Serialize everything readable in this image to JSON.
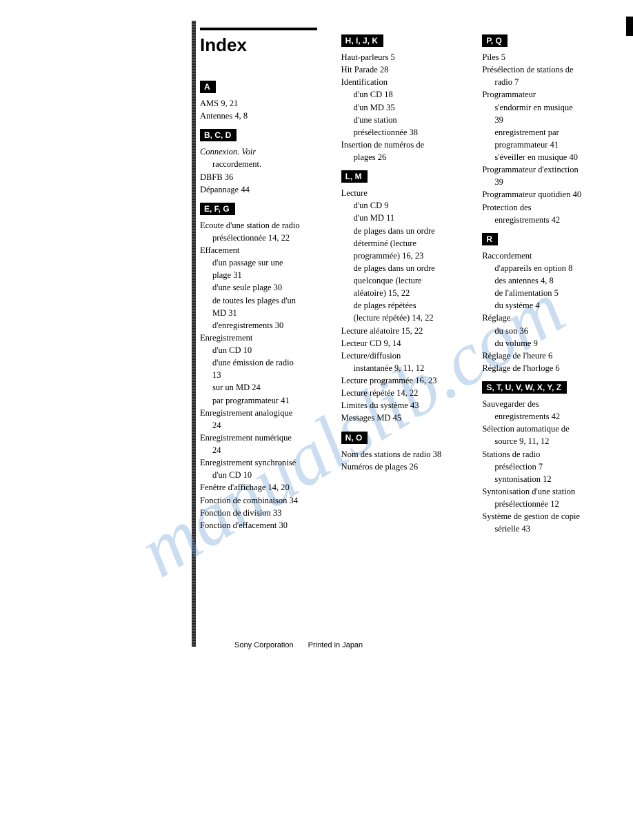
{
  "title": "Index",
  "watermark": "manualslib.com",
  "footer_corp": "Sony Corporation",
  "footer_print": "Printed in Japan",
  "col1": {
    "sections": [
      {
        "badge": "A",
        "entries": [
          {
            "text": "AMS  9, 21"
          },
          {
            "text": "Antennes  4, 8"
          }
        ]
      },
      {
        "badge": "B, C, D",
        "entries": [
          {
            "text": "Connexion. Voir"
          },
          {
            "text": "raccordement.",
            "sub": true
          },
          {
            "text": "DBFB  36"
          },
          {
            "text": "Dépannage 44"
          }
        ]
      },
      {
        "badge": "E, F, G",
        "entries": [
          {
            "text": "Ecoute d'une station de radio"
          },
          {
            "text": "présélectionnée 14, 22",
            "sub": true
          },
          {
            "text": "Effacement"
          },
          {
            "text": "d'un passage sur une",
            "sub": true
          },
          {
            "text": "plage 31",
            "sub": true
          },
          {
            "text": "d'une seule plage 30",
            "sub": true
          },
          {
            "text": "de toutes les plages d'un",
            "sub": true
          },
          {
            "text": "MD  31",
            "sub": true
          },
          {
            "text": "d'enregistrements 30",
            "sub": true
          },
          {
            "text": "Enregistrement"
          },
          {
            "text": "d'un CD  10",
            "sub": true
          },
          {
            "text": "d'une émission de radio",
            "sub": true
          },
          {
            "text": "13",
            "sub": true
          },
          {
            "text": "sur un MD  24",
            "sub": true
          },
          {
            "text": "par programmateur 41",
            "sub": true
          },
          {
            "text": "Enregistrement analogique"
          },
          {
            "text": "24",
            "sub": true
          },
          {
            "text": "Enregistrement numérique"
          },
          {
            "text": "24",
            "sub": true
          },
          {
            "text": "Enregistrement synchronisé"
          },
          {
            "text": "d'un CD 10",
            "sub": true
          },
          {
            "text": "Fenêtre d'affichage 14, 20"
          },
          {
            "text": "Fonction de combinaison 34"
          },
          {
            "text": "Fonction de division  33"
          },
          {
            "text": "Fonction d'effacement  30"
          }
        ]
      }
    ]
  },
  "col2": {
    "sections": [
      {
        "badge": "H, I, J, K",
        "entries": [
          {
            "text": "Haut-parleurs 5"
          },
          {
            "text": "Hit Parade  28"
          },
          {
            "text": "Identification"
          },
          {
            "text": "d'un CD  18",
            "sub": true
          },
          {
            "text": "d'un MD  35",
            "sub": true
          },
          {
            "text": "d'une station",
            "sub": true
          },
          {
            "text": "présélectionnée  38",
            "sub": true
          },
          {
            "text": "Insertion de numéros de"
          },
          {
            "text": "plages 26",
            "sub": true
          }
        ]
      },
      {
        "badge": "L, M",
        "entries": [
          {
            "text": "Lecture"
          },
          {
            "text": "d'un CD  9",
            "sub": true
          },
          {
            "text": "d'un MD  11",
            "sub": true
          },
          {
            "text": "de plages dans un ordre",
            "sub": true
          },
          {
            "text": "déterminé (lecture",
            "sub": true
          },
          {
            "text": "programmée) 16, 23",
            "sub": true
          },
          {
            "text": "de plages dans un ordre",
            "sub": true
          },
          {
            "text": "quelconque (lecture",
            "sub": true
          },
          {
            "text": "aléatoire)  15, 22",
            "sub": true
          },
          {
            "text": "de plages répétées",
            "sub": true
          },
          {
            "text": "(lecture répétée) 14, 22",
            "sub": true
          },
          {
            "text": "Lecture aléatoire 15, 22"
          },
          {
            "text": "Lecteur CD 9, 14"
          },
          {
            "text": "Lecture/diffusion"
          },
          {
            "text": "instantanée 9, 11, 12",
            "sub": true
          },
          {
            "text": "Lecture programmée 16, 23"
          },
          {
            "text": "Lecture répétée 14, 22"
          },
          {
            "text": "Limites du système 43"
          },
          {
            "text": "Messages MD 45"
          }
        ]
      },
      {
        "badge": "N, O",
        "entries": [
          {
            "text": "Nom des stations de radio 38"
          },
          {
            "text": "Numéros de plages 26"
          }
        ]
      }
    ]
  },
  "col3": {
    "sections": [
      {
        "badge": "P, Q",
        "entries": [
          {
            "text": "Piles 5"
          },
          {
            "text": "Présélection de stations de"
          },
          {
            "text": "radio 7",
            "sub": true
          },
          {
            "text": "Programmateur"
          },
          {
            "text": "s'endormir en musique",
            "sub": true
          },
          {
            "text": "39",
            "sub": true
          },
          {
            "text": "enregistrement par",
            "sub": true
          },
          {
            "text": "programmateur 41",
            "sub": true
          },
          {
            "text": "s'éveiller en musique 40",
            "sub": true
          },
          {
            "text": "Programmateur d'extinction"
          },
          {
            "text": "39",
            "sub": true
          },
          {
            "text": "Programmateur quotidien 40"
          },
          {
            "text": "Protection des"
          },
          {
            "text": "enregistrements 42",
            "sub": true
          }
        ]
      },
      {
        "badge": "R",
        "entries": [
          {
            "text": "Raccordement"
          },
          {
            "text": "d'appareils en option 8",
            "sub": true
          },
          {
            "text": "des antennes  4, 8",
            "sub": true
          },
          {
            "text": "de l'alimentation 5",
            "sub": true
          },
          {
            "text": "du système 4",
            "sub": true
          },
          {
            "text": "Réglage"
          },
          {
            "text": "du son  36",
            "sub": true
          },
          {
            "text": "du volume  9",
            "sub": true
          },
          {
            "text": "Réglage de l'heure 6"
          },
          {
            "text": "Réglage de l'horloge 6"
          }
        ]
      },
      {
        "badge": "S, T, U, V, W, X, Y, Z",
        "entries": [
          {
            "text": "Sauvegarder des"
          },
          {
            "text": "enregistrements 42",
            "sub": true
          },
          {
            "text": "Sélection automatique de"
          },
          {
            "text": "source  9, 11, 12",
            "sub": true
          },
          {
            "text": "Stations de radio"
          },
          {
            "text": "présélection 7",
            "sub": true
          },
          {
            "text": "syntonisation 12",
            "sub": true
          },
          {
            "text": "Syntonisation d'une station"
          },
          {
            "text": "présélectionnée 12",
            "sub": true
          },
          {
            "text": "Système de gestion de copie"
          },
          {
            "text": "sérielle 43",
            "sub": true
          }
        ]
      }
    ]
  }
}
